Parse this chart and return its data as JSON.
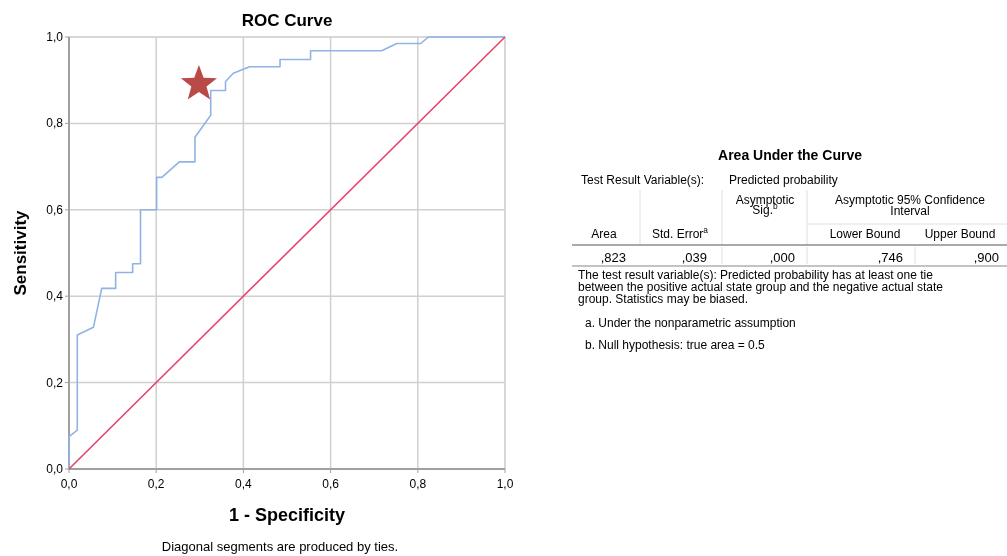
{
  "chart_data": [
    {
      "type": "line",
      "title": "ROC Curve",
      "xlabel": "1 - Specificity",
      "ylabel": "Sensitivity",
      "xlim": [
        0,
        1
      ],
      "ylim": [
        0,
        1
      ],
      "xticks": [
        {
          "value": 0,
          "label": "0,0"
        },
        {
          "value": 0.2,
          "label": "0,2"
        },
        {
          "value": 0.4,
          "label": "0,4"
        },
        {
          "value": 0.6,
          "label": "0,6"
        },
        {
          "value": 0.8,
          "label": "0,8"
        },
        {
          "value": 1,
          "label": "1,0"
        }
      ],
      "yticks": [
        {
          "value": 0,
          "label": "0,0"
        },
        {
          "value": 0.2,
          "label": "0,2"
        },
        {
          "value": 0.4,
          "label": "0,4"
        },
        {
          "value": 0.6,
          "label": "0,6"
        },
        {
          "value": 0.8,
          "label": "0,8"
        },
        {
          "value": 1,
          "label": "1,0"
        }
      ],
      "grid": true,
      "annotations": [
        "Diagonal segments are produced by ties."
      ],
      "series": [
        {
          "color": "#8fb4e3",
          "x": [
            0,
            0,
            0.019,
            0.019,
            0.056,
            0.075,
            0.107,
            0.107,
            0.146,
            0.146,
            0.164,
            0.164,
            0.201,
            0.201,
            0.213,
            0.253,
            0.289,
            0.289,
            0.325,
            0.325,
            0.359,
            0.359,
            0.377,
            0.414,
            0.484,
            0.484,
            0.554,
            0.554,
            0.717,
            0.752,
            0.807,
            0.824,
            1
          ],
          "values": [
            0,
            0.075,
            0.09,
            0.31,
            0.328,
            0.418,
            0.418,
            0.455,
            0.455,
            0.475,
            0.475,
            0.6,
            0.6,
            0.675,
            0.675,
            0.711,
            0.711,
            0.768,
            0.819,
            0.876,
            0.876,
            0.897,
            0.916,
            0.931,
            0.931,
            0.948,
            0.948,
            0.968,
            0.968,
            0.985,
            0.985,
            1,
            1
          ]
        },
        {
          "color": "#e8456b",
          "x": [
            0,
            1
          ],
          "values": [
            0,
            1
          ]
        },
        {
          "type": "scatter",
          "marker": "star",
          "color": "#b94a48",
          "x": [
            0.298
          ],
          "values": [
            0.891
          ]
        }
      ]
    },
    {
      "type": "other",
      "title": "Area Under the Curve",
      "categories": [
        "Area",
        "Std. Error$^{a}$",
        "Asymptotic Sig.$^{b}$",
        "Lower Bound",
        "Upper Bound"
      ],
      "annotations": [
        "Test Result Variable(s):",
        "Predicted probability",
        "Asymptotic 95% Confidence Interval",
        "The test result variable(s): Predicted probability has at least one tie between the positive actual state group and the negative actual state group. Statistics may be biased.",
        "a. Under the nonparametric assumption",
        "b. Null hypothesis: true area = 0.5",
        ",823",
        ",039",
        ",000",
        ",746",
        ",900"
      ]
    }
  ]
}
